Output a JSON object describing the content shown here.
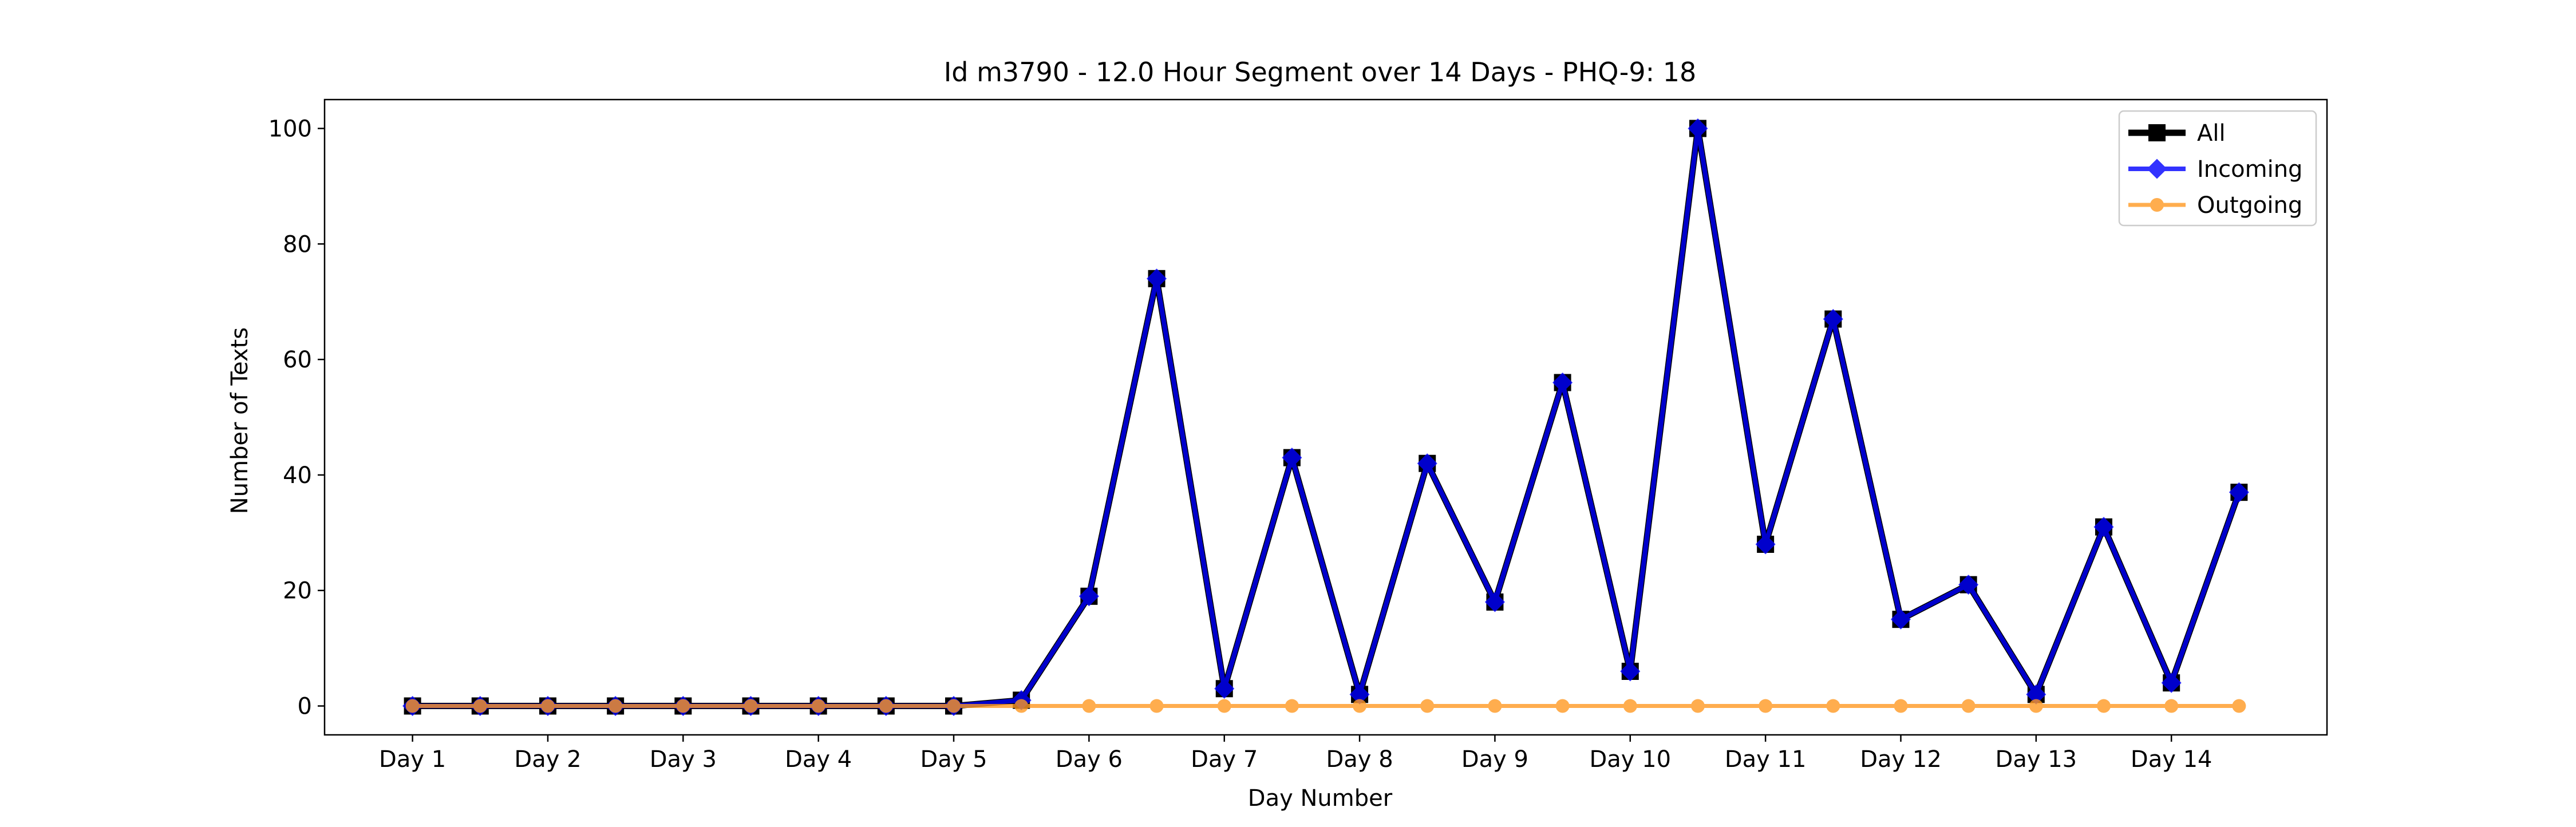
{
  "chart_data": {
    "type": "line",
    "title": "Id m3790 - 12.0 Hour Segment over 14 Days - PHQ-9: 18",
    "xlabel": "Day Number",
    "ylabel": "Number of Texts",
    "ylim": [
      -5,
      105
    ],
    "yticks": [
      0,
      20,
      40,
      60,
      80,
      100
    ],
    "xlim": [
      0.35,
      15.15
    ],
    "xticks": [
      1,
      2,
      3,
      4,
      5,
      6,
      7,
      8,
      9,
      10,
      11,
      12,
      13,
      14
    ],
    "xtick_labels": [
      "Day 1",
      "Day 2",
      "Day 3",
      "Day 4",
      "Day 5",
      "Day 6",
      "Day 7",
      "Day 8",
      "Day 9",
      "Day 10",
      "Day 11",
      "Day 12",
      "Day 13",
      "Day 14"
    ],
    "x": [
      1,
      1.5,
      2,
      2.5,
      3,
      3.5,
      4,
      4.5,
      5,
      5.5,
      6,
      6.5,
      7,
      7.5,
      8,
      8.5,
      9,
      9.5,
      10,
      10.5,
      11,
      11.5,
      12,
      12.5,
      13,
      13.5,
      14,
      14.5
    ],
    "grid": false,
    "legend_position": "top-right",
    "series": [
      {
        "name": "All",
        "color": "#000000",
        "marker": "square",
        "values": [
          0,
          0,
          0,
          0,
          0,
          0,
          0,
          0,
          0,
          1,
          19,
          74,
          3,
          43,
          2,
          42,
          18,
          56,
          6,
          100,
          28,
          67,
          15,
          21,
          2,
          31,
          4,
          37
        ]
      },
      {
        "name": "Incoming",
        "color": "#0000ff",
        "marker": "diamond",
        "values": [
          0,
          0,
          0,
          0,
          0,
          0,
          0,
          0,
          0,
          1,
          19,
          74,
          3,
          43,
          2,
          42,
          18,
          56,
          6,
          100,
          28,
          67,
          15,
          21,
          2,
          31,
          4,
          37
        ]
      },
      {
        "name": "Outgoing",
        "color": "#ff9922",
        "marker": "circle",
        "values": [
          0,
          0,
          0,
          0,
          0,
          0,
          0,
          0,
          0,
          0,
          0,
          0,
          0,
          0,
          0,
          0,
          0,
          0,
          0,
          0,
          0,
          0,
          0,
          0,
          0,
          0,
          0,
          0
        ]
      }
    ]
  }
}
